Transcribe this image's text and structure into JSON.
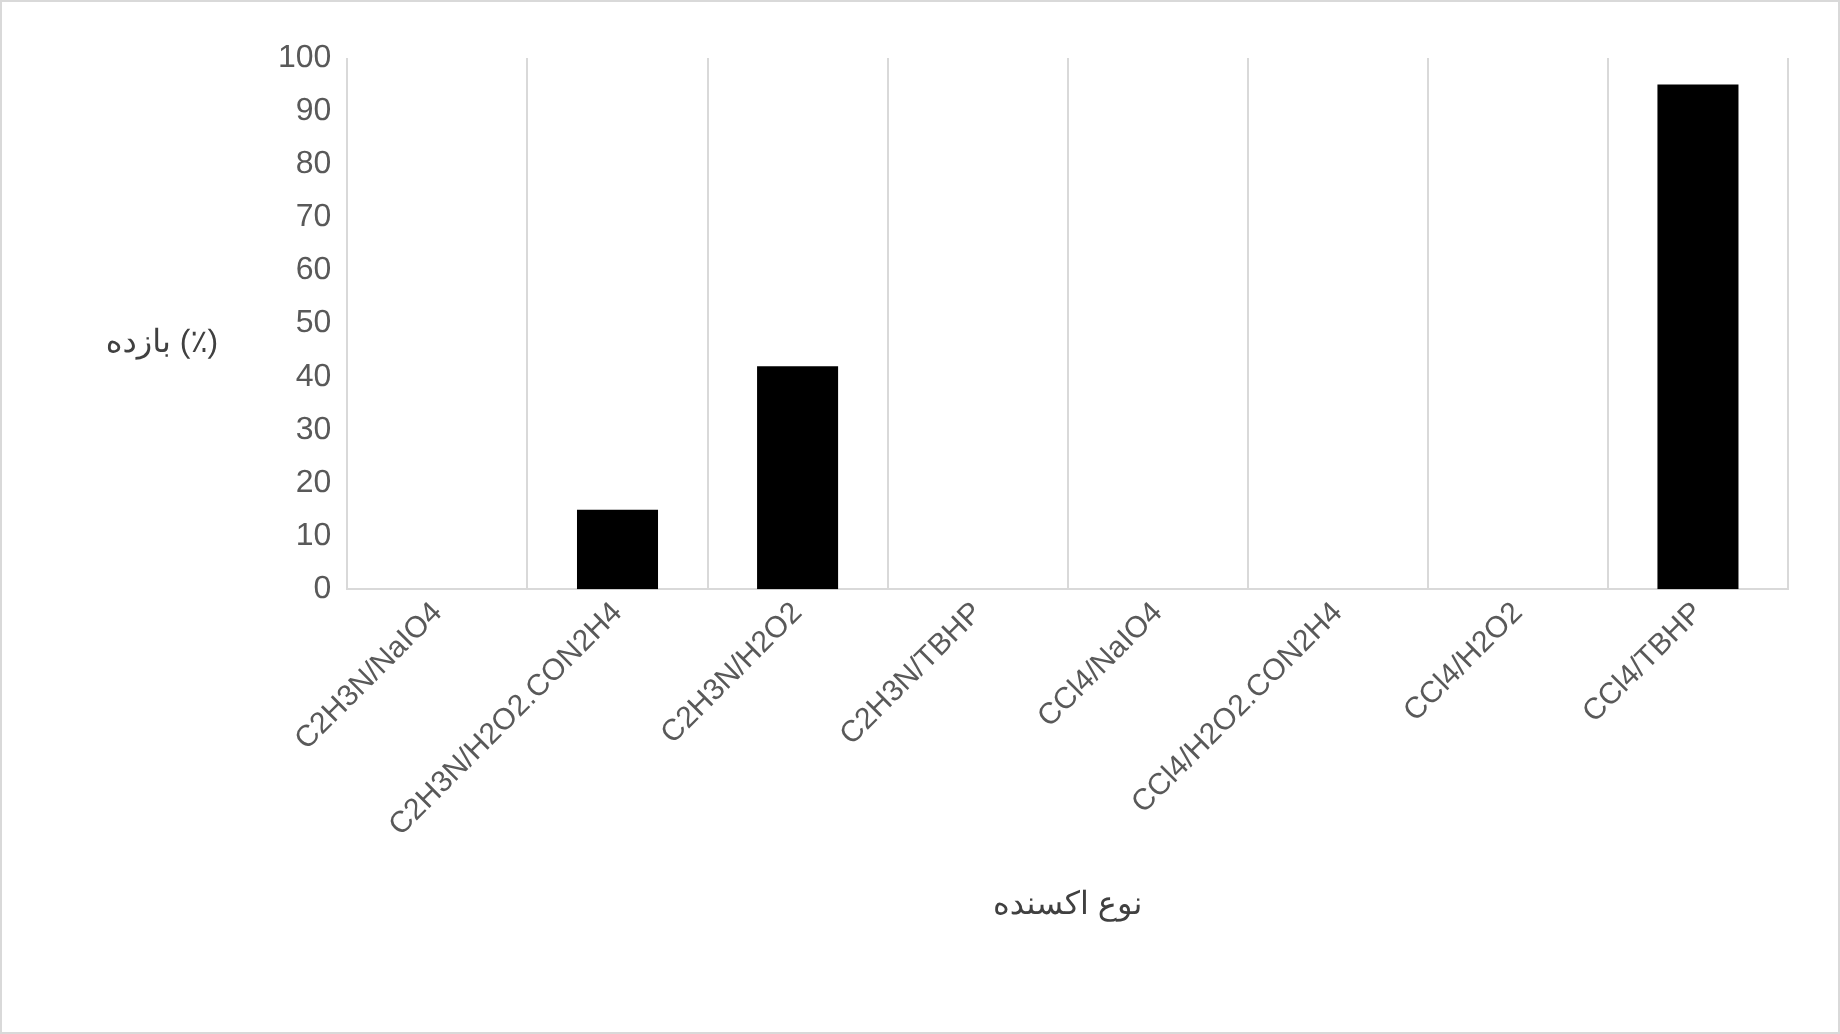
{
  "chart_data": {
    "type": "bar",
    "xlabel": "نوع اکسنده",
    "ylabel": "بازده (٪)",
    "categories": [
      "C2H3N/NaIO4",
      "C2H3N/H2O2.CON2H4",
      "C2H3N/H2O2",
      "C2H3N/TBHP",
      "CCl4/NaIO4",
      "CCl4/H2O2.CON2H4",
      "CCl4/H2O2",
      "CCl4/TBHP"
    ],
    "values": [
      0,
      15,
      42,
      0,
      0,
      0,
      0,
      95
    ],
    "color": "#000000",
    "ylim": [
      0,
      100
    ],
    "yticks": [
      0,
      10,
      20,
      30,
      40,
      50,
      60,
      70,
      80,
      90,
      100
    ],
    "grid": "x",
    "legend": false
  }
}
